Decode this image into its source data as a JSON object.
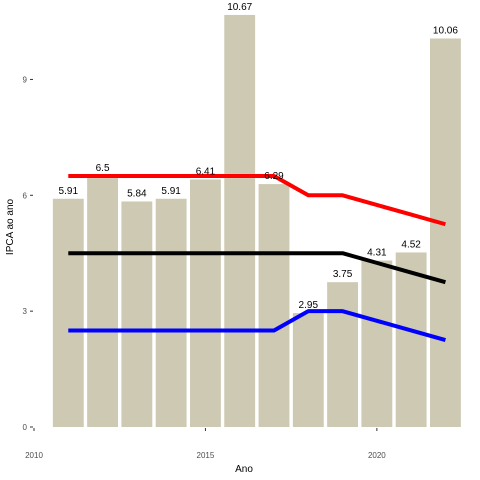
{
  "chart_data": {
    "type": "bar",
    "xlabel": "Ano",
    "ylabel": "IPCA ao ano",
    "x": [
      2011,
      2012,
      2013,
      2014,
      2015,
      2016,
      2017,
      2018,
      2019,
      2020,
      2021,
      2022
    ],
    "values": [
      5.91,
      6.5,
      5.84,
      5.91,
      6.41,
      10.67,
      6.29,
      2.95,
      3.75,
      4.31,
      4.52,
      10.06
    ],
    "data_labels": [
      "5.91",
      "6.5",
      "5.84",
      "5.91",
      "6.41",
      "10.67",
      "6.29",
      "2.95",
      "3.75",
      "4.31",
      "4.52",
      "10.06"
    ],
    "xticks": [
      2010,
      2015,
      2020
    ],
    "xtick_labels": [
      "2010",
      "2015",
      "2020"
    ],
    "yticks": [
      0,
      3,
      6,
      9
    ],
    "ytick_labels": [
      "0",
      "3",
      "6",
      "9"
    ],
    "xlim": [
      2010,
      2022.6
    ],
    "ylim": [
      0,
      10.85
    ],
    "grid": false,
    "bar_color": "#cdc9b3",
    "series": [
      {
        "color": "#ff0000",
        "x": [
          2011,
          2017,
          2018,
          2019,
          2020,
          2021,
          2022
        ],
        "values": [
          6.5,
          6.5,
          6.0,
          6.0,
          5.75,
          5.5,
          5.25
        ]
      },
      {
        "color": "#000000",
        "x": [
          2011,
          2017,
          2018,
          2019,
          2020,
          2021,
          2022
        ],
        "values": [
          4.5,
          4.5,
          4.5,
          4.5,
          4.25,
          4.0,
          3.75
        ]
      },
      {
        "color": "#0000ff",
        "x": [
          2011,
          2017,
          2018,
          2019,
          2020,
          2021,
          2022
        ],
        "values": [
          2.5,
          2.5,
          3.0,
          3.0,
          2.75,
          2.5,
          2.25
        ]
      }
    ]
  }
}
